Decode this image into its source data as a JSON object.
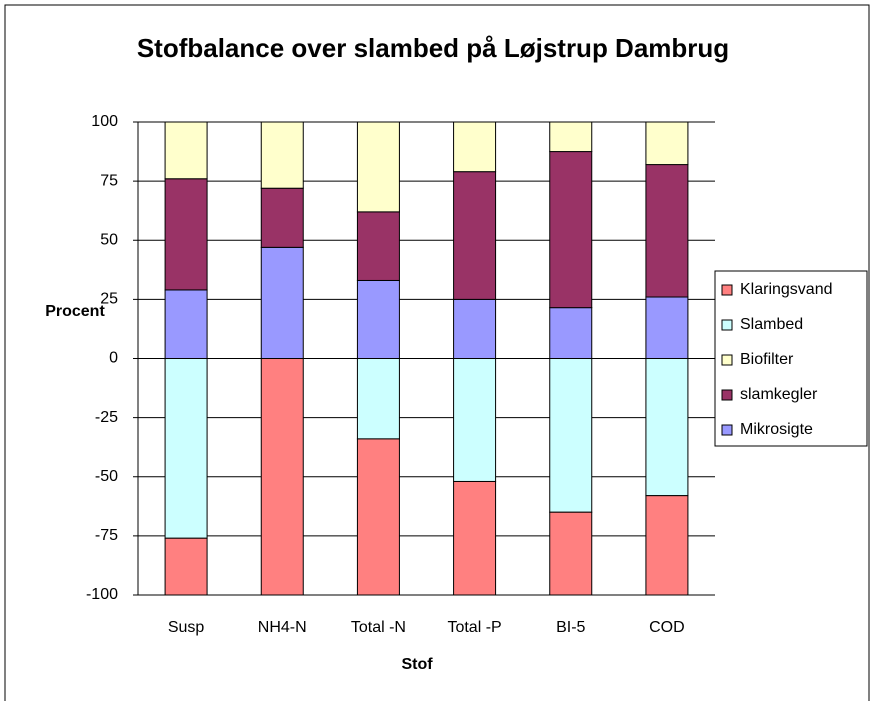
{
  "chart_data": {
    "type": "stacked_bar",
    "title": "Stofbalance over slambed på Løjstrup Dambrug",
    "x_label": "Stof",
    "y_label": "Procent",
    "categories": [
      "Susp",
      "NH4-N",
      "Total -N",
      "Total -P",
      "BI-5",
      "COD"
    ],
    "series": [
      {
        "name": "Mikrosigte",
        "color": "#9999ff",
        "values": [
          29,
          47,
          33,
          25,
          21.5,
          26
        ]
      },
      {
        "name": "slamkegler",
        "color": "#993366",
        "values": [
          47,
          25,
          29,
          54,
          66,
          56
        ]
      },
      {
        "name": "Biofilter",
        "color": "#ffffcc",
        "values": [
          24,
          28,
          38,
          21,
          12.5,
          18
        ]
      },
      {
        "name": "Slambed",
        "color": "#ccffff",
        "values": [
          -76,
          0,
          -34,
          -52,
          -65,
          -58
        ]
      },
      {
        "name": "Klaringsvand",
        "color": "#ff8080",
        "values": [
          -24,
          -100,
          -66,
          -48,
          -35,
          -42
        ]
      }
    ],
    "ylim": [
      -100,
      100
    ],
    "yticks": [
      -100,
      -75,
      -50,
      -25,
      0,
      25,
      50,
      75,
      100
    ],
    "grid": true,
    "legend": "right"
  }
}
